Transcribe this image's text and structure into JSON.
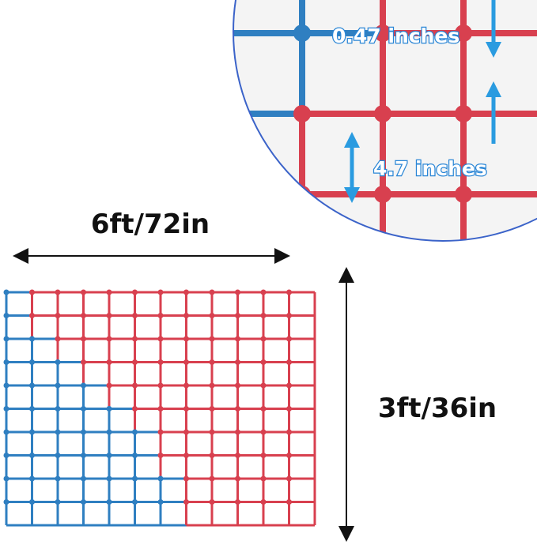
{
  "labels": {
    "width": "6ft/72in",
    "height": "3ft/36in"
  },
  "zoom": {
    "knot_label": "0.47 inches",
    "mesh_label": "4.7 inches"
  }
}
